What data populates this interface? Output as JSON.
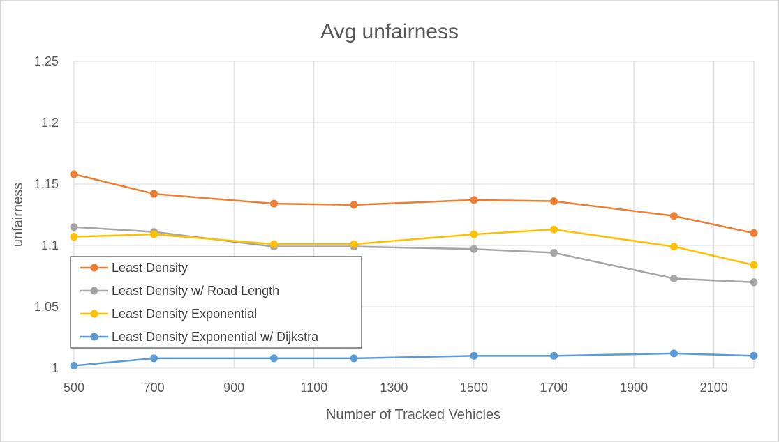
{
  "chart_data": {
    "type": "line",
    "title": "Avg unfairness",
    "xlabel": "Number of Tracked Vehicles",
    "ylabel": "unfairness",
    "xlim": [
      500,
      2200
    ],
    "ylim": [
      1,
      1.25
    ],
    "x_ticks": [
      "500",
      "700",
      "900",
      "1100",
      "1300",
      "1500",
      "1700",
      "1900",
      "2100"
    ],
    "y_ticks": [
      "1",
      "1.05",
      "1.1",
      "1.15",
      "1.2",
      "1.25"
    ],
    "grid": true,
    "legend_position": "bottom-left",
    "x": [
      500,
      700,
      1000,
      1200,
      1500,
      1700,
      2000,
      2200
    ],
    "series": [
      {
        "name": "Least Density",
        "color": "#ED7D31",
        "values": [
          1.158,
          1.142,
          1.134,
          1.133,
          1.137,
          1.136,
          1.124,
          1.11
        ]
      },
      {
        "name": "Least Density w/ Road Length",
        "color": "#A5A5A5",
        "values": [
          1.115,
          1.111,
          1.099,
          1.099,
          1.097,
          1.094,
          1.073,
          1.07
        ]
      },
      {
        "name": "Least Density Exponential",
        "color": "#FFC000",
        "values": [
          1.107,
          1.109,
          1.101,
          1.101,
          1.109,
          1.113,
          1.099,
          1.084
        ]
      },
      {
        "name": "Least Density Exponential w/ Dijkstra",
        "color": "#5B9BD5",
        "values": [
          1.002,
          1.008,
          1.008,
          1.008,
          1.01,
          1.01,
          1.012,
          1.01
        ]
      }
    ]
  }
}
